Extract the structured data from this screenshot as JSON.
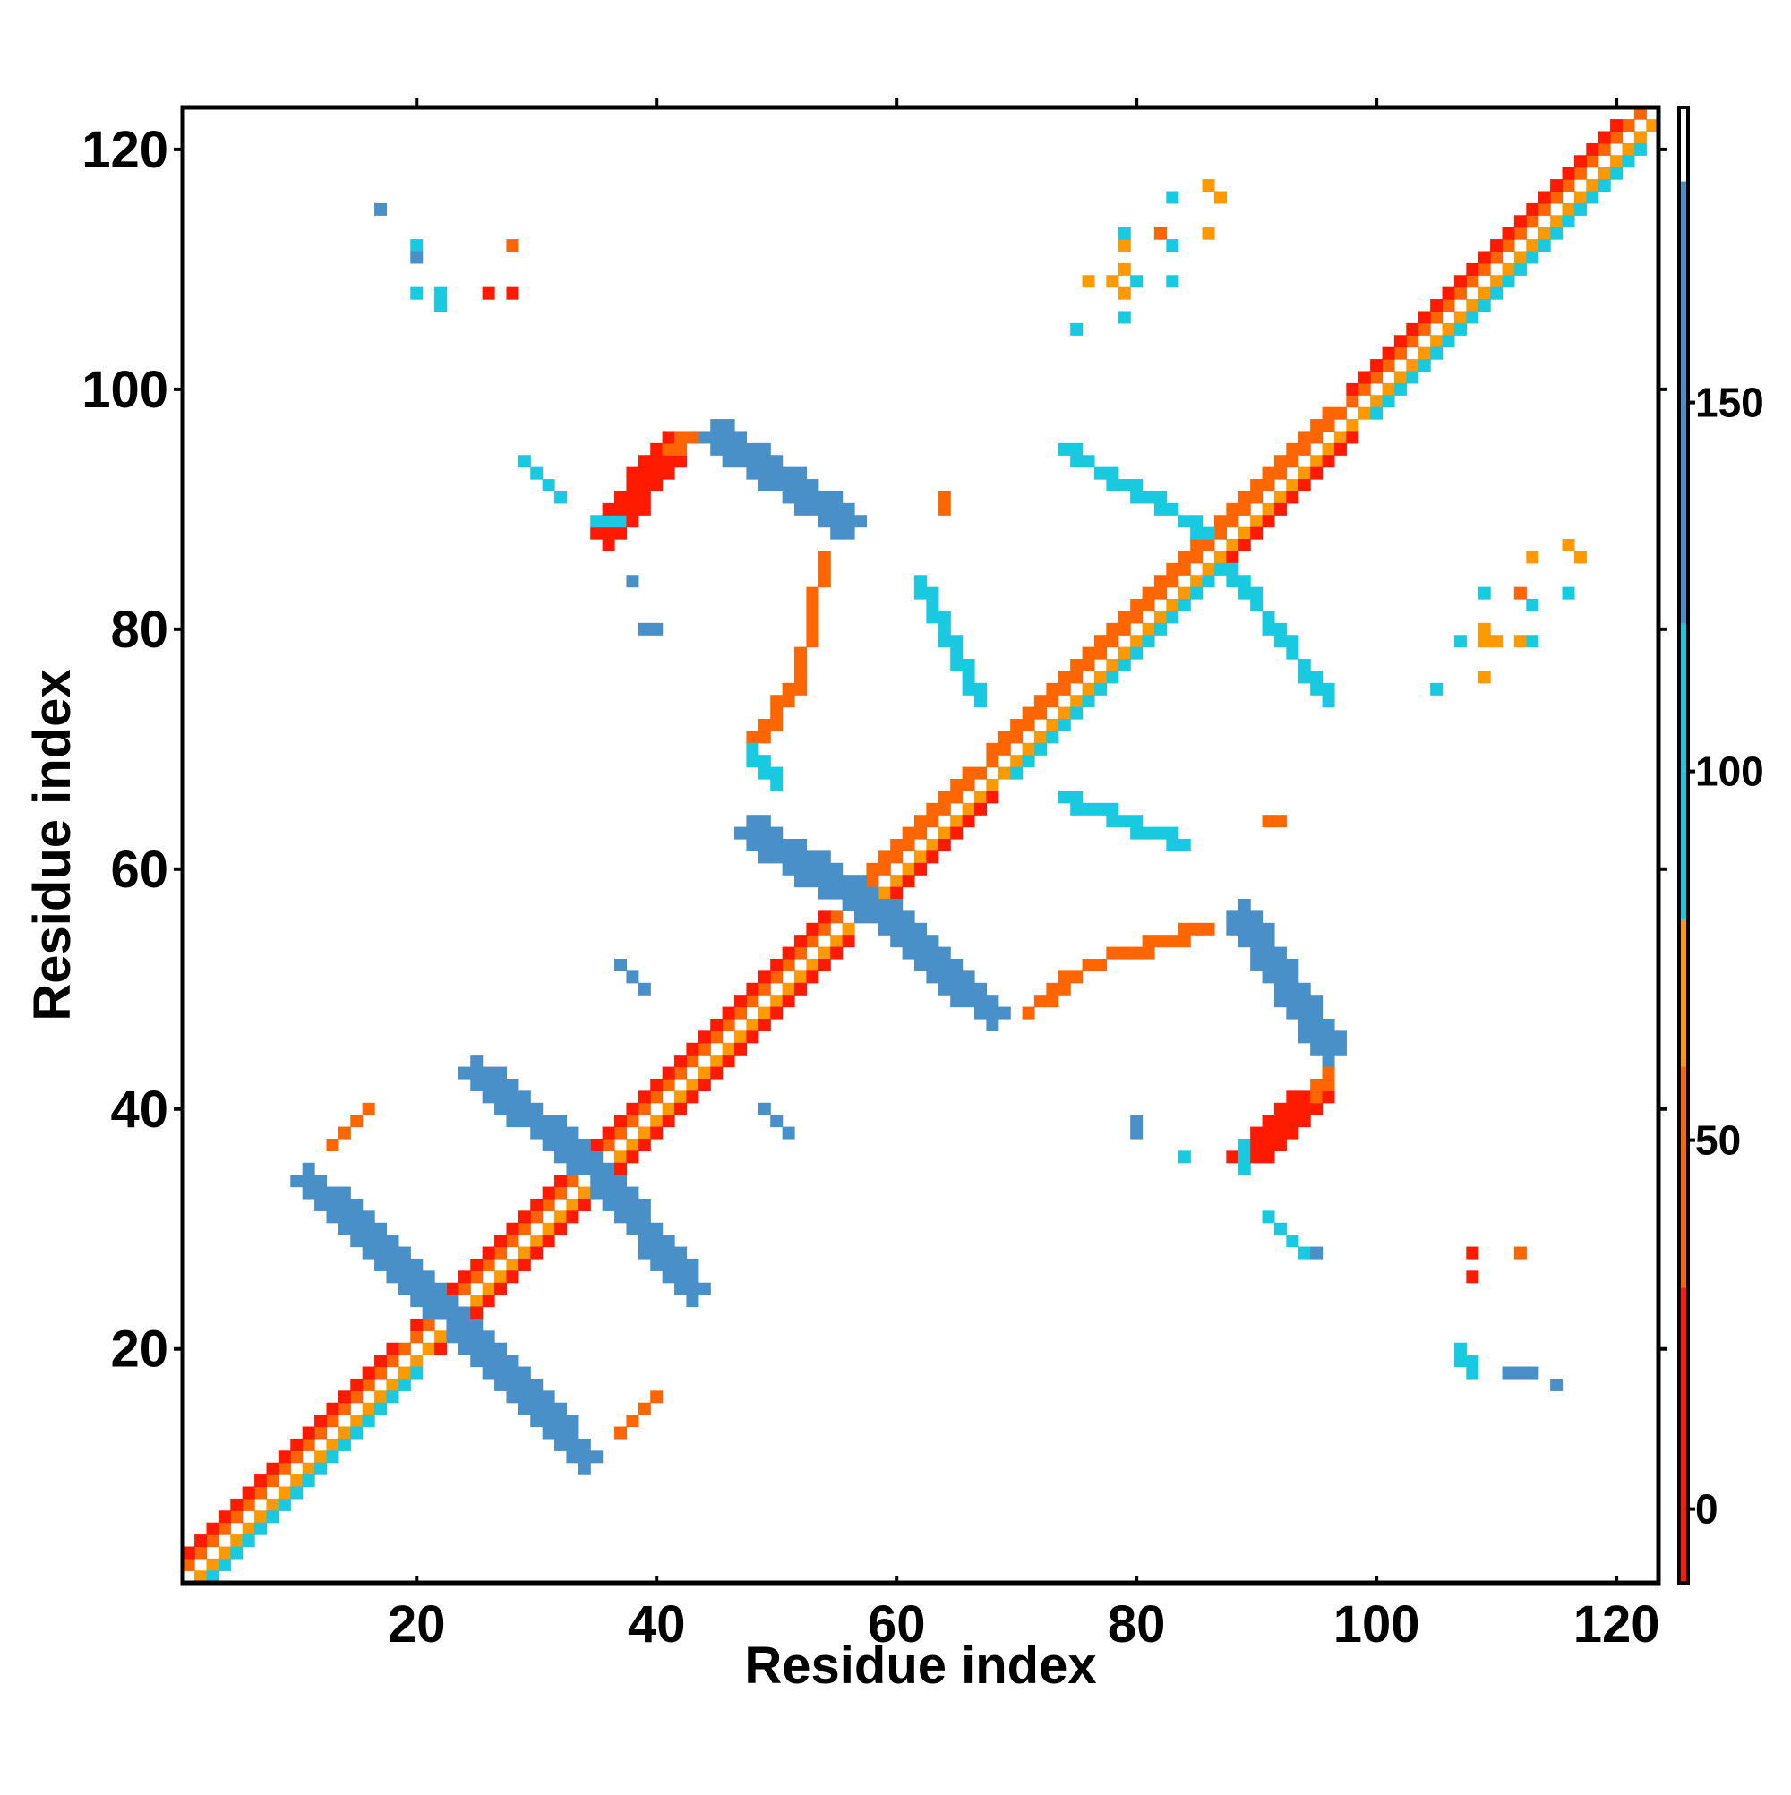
{
  "chart_data": {
    "type": "heatmap",
    "title": "",
    "xlabel": "Residue index",
    "ylabel": "Residue index",
    "xlim": [
      1,
      123
    ],
    "ylim": [
      1,
      123
    ],
    "x_ticks": [
      20,
      40,
      60,
      80,
      100,
      120
    ],
    "y_ticks": [
      20,
      40,
      60,
      80,
      100,
      120
    ],
    "grid": false,
    "colorbar": {
      "range": [
        -10,
        190
      ],
      "ticks": [
        0,
        50,
        100,
        150
      ],
      "bands": [
        {
          "from": -10,
          "to": 30,
          "color": "#ff1a00"
        },
        {
          "from": 30,
          "to": 60,
          "color": "#ff6600"
        },
        {
          "from": 60,
          "to": 80,
          "color": "#ff9900"
        },
        {
          "from": 80,
          "to": 120,
          "color": "#18c9e0"
        },
        {
          "from": 120,
          "to": 180,
          "color": "#4a90c8"
        },
        {
          "from": 180,
          "to": 190,
          "color": "#ffffff"
        }
      ]
    },
    "colors": {
      "red": "#ff1a00",
      "orange": "#ff6600",
      "amber": "#ff9900",
      "cyan": "#18c9e0",
      "steel": "#4a90c8"
    },
    "segments": [
      {
        "from": [
          2,
          1
        ],
        "to": [
          123,
          122
        ],
        "width": 1.0,
        "color": "amber",
        "value": 70
      },
      {
        "from": [
          1,
          2
        ],
        "to": [
          122,
          123
        ],
        "width": 1.0,
        "color": "orange",
        "value": 45
      },
      {
        "from": [
          3,
          1
        ],
        "to": [
          20,
          18
        ],
        "width": 1.0,
        "color": "cyan",
        "value": 100
      },
      {
        "from": [
          1,
          3
        ],
        "to": [
          18,
          20
        ],
        "width": 1.0,
        "color": "red",
        "value": 10
      },
      {
        "from": [
          22,
          20
        ],
        "to": [
          56,
          54
        ],
        "width": 1.4,
        "color": "red",
        "value": 5
      },
      {
        "from": [
          20,
          22
        ],
        "to": [
          54,
          56
        ],
        "width": 1.4,
        "color": "red",
        "value": 5
      },
      {
        "from": [
          60,
          58
        ],
        "to": [
          68,
          66
        ],
        "width": 1.2,
        "color": "red",
        "value": 10
      },
      {
        "from": [
          58,
          60
        ],
        "to": [
          66,
          68
        ],
        "width": 1.2,
        "color": "orange",
        "value": 40
      },
      {
        "from": [
          70,
          68
        ],
        "to": [
          90,
          88
        ],
        "width": 1.4,
        "color": "cyan",
        "value": 100
      },
      {
        "from": [
          68,
          70
        ],
        "to": [
          88,
          90
        ],
        "width": 1.4,
        "color": "orange",
        "value": 45
      },
      {
        "from": [
          88,
          86
        ],
        "to": [
          98,
          96
        ],
        "width": 1.2,
        "color": "red",
        "value": 10
      },
      {
        "from": [
          86,
          88
        ],
        "to": [
          96,
          98
        ],
        "width": 1.2,
        "color": "orange",
        "value": 45
      },
      {
        "from": [
          100,
          98
        ],
        "to": [
          122,
          120
        ],
        "width": 1.4,
        "color": "cyan",
        "value": 100
      },
      {
        "from": [
          98,
          100
        ],
        "to": [
          120,
          122
        ],
        "width": 1.4,
        "color": "red",
        "value": 10
      },
      {
        "from": [
          11,
          34
        ],
        "to": [
          24,
          22
        ],
        "width": 2.0,
        "color": "steel",
        "value": 150
      },
      {
        "from": [
          22,
          24
        ],
        "to": [
          34,
          11
        ],
        "width": 2.0,
        "color": "steel",
        "value": 150
      },
      {
        "from": [
          25,
          43
        ],
        "to": [
          35,
          35
        ],
        "width": 2.0,
        "color": "steel",
        "value": 150
      },
      {
        "from": [
          35,
          35
        ],
        "to": [
          43,
          25
        ],
        "width": 2.0,
        "color": "steel",
        "value": 150
      },
      {
        "from": [
          48,
          63
        ],
        "to": [
          58,
          57
        ],
        "width": 2.2,
        "color": "steel",
        "value": 150
      },
      {
        "from": [
          57,
          58
        ],
        "to": [
          68,
          48
        ],
        "width": 2.2,
        "color": "steel",
        "value": 150
      },
      {
        "from": [
          89,
          56
        ],
        "to": [
          96,
          45
        ],
        "width": 2.0,
        "color": "steel",
        "value": 150
      },
      {
        "from": [
          45,
          96
        ],
        "to": [
          56,
          89
        ],
        "width": 2.0,
        "color": "steel",
        "value": 150
      },
      {
        "from": [
          74,
          95
        ],
        "to": [
          86,
          88
        ],
        "width": 1.6,
        "color": "cyan",
        "value": 110
      },
      {
        "from": [
          88,
          85
        ],
        "to": [
          96,
          74
        ],
        "width": 1.6,
        "color": "cyan",
        "value": 110
      },
      {
        "from": [
          62,
          84
        ],
        "to": [
          67,
          74
        ],
        "width": 1.4,
        "color": "cyan",
        "value": 110
      },
      {
        "from": [
          74,
          66
        ],
        "to": [
          84,
          62
        ],
        "width": 1.4,
        "color": "cyan",
        "value": 110
      },
      {
        "from": [
          54,
          86
        ],
        "to": [
          52,
          76
        ],
        "width": 1.8,
        "color": "orange",
        "value": 45
      },
      {
        "from": [
          52,
          76
        ],
        "to": [
          48,
          70
        ],
        "width": 1.8,
        "color": "orange",
        "value": 45
      },
      {
        "from": [
          48,
          70
        ],
        "to": [
          50,
          67
        ],
        "width": 1.6,
        "color": "cyan",
        "value": 100
      },
      {
        "from": [
          71,
          48
        ],
        "to": [
          76,
          52
        ],
        "width": 1.6,
        "color": "orange",
        "value": 45
      },
      {
        "from": [
          76,
          52
        ],
        "to": [
          86,
          55
        ],
        "width": 1.8,
        "color": "orange",
        "value": 45
      },
      {
        "from": [
          36,
          88
        ],
        "to": [
          41,
          95
        ],
        "width": 2.6,
        "color": "red",
        "value": 5
      },
      {
        "from": [
          41,
          95
        ],
        "to": [
          43,
          96
        ],
        "width": 1.6,
        "color": "orange",
        "value": 45
      },
      {
        "from": [
          35,
          89
        ],
        "to": [
          37,
          89
        ],
        "width": 1.0,
        "color": "cyan",
        "value": 100
      },
      {
        "from": [
          89,
          36
        ],
        "to": [
          95,
          41
        ],
        "width": 2.6,
        "color": "red",
        "value": 5
      },
      {
        "from": [
          95,
          41
        ],
        "to": [
          96,
          43
        ],
        "width": 1.6,
        "color": "orange",
        "value": 45
      },
      {
        "from": [
          89,
          35
        ],
        "to": [
          89,
          37
        ],
        "width": 1.0,
        "color": "cyan",
        "value": 100
      },
      {
        "from": [
          13,
          37
        ],
        "to": [
          16,
          40
        ],
        "width": 1.0,
        "color": "orange",
        "value": 45
      },
      {
        "from": [
          37,
          13
        ],
        "to": [
          40,
          16
        ],
        "width": 1.0,
        "color": "orange",
        "value": 45
      },
      {
        "from": [
          29,
          94
        ],
        "to": [
          32,
          91
        ],
        "width": 1.0,
        "color": "cyan",
        "value": 110
      },
      {
        "from": [
          37,
          52
        ],
        "to": [
          39,
          50
        ],
        "width": 1.0,
        "color": "steel",
        "value": 150
      },
      {
        "from": [
          49,
          40
        ],
        "to": [
          51,
          38
        ],
        "width": 1.0,
        "color": "steel",
        "value": 150
      },
      {
        "from": [
          91,
          31
        ],
        "to": [
          94,
          28
        ],
        "width": 1.0,
        "color": "cyan",
        "value": 110
      },
      {
        "from": [
          107,
          20
        ],
        "to": [
          108,
          18
        ],
        "width": 1.0,
        "color": "cyan",
        "value": 110
      },
      {
        "from": [
          111,
          18
        ],
        "to": [
          113,
          18
        ],
        "width": 1.0,
        "color": "steel",
        "value": 150
      }
    ],
    "points": [
      {
        "x": 17,
        "y": 115,
        "color": "steel",
        "value": 150
      },
      {
        "x": 20,
        "y": 112,
        "color": "cyan",
        "value": 110
      },
      {
        "x": 20,
        "y": 111,
        "color": "steel",
        "value": 150
      },
      {
        "x": 20,
        "y": 108,
        "color": "cyan",
        "value": 110
      },
      {
        "x": 22,
        "y": 108,
        "color": "cyan",
        "value": 110
      },
      {
        "x": 22,
        "y": 107,
        "color": "cyan",
        "value": 110
      },
      {
        "x": 26,
        "y": 108,
        "color": "red",
        "value": 5
      },
      {
        "x": 28,
        "y": 108,
        "color": "red",
        "value": 5
      },
      {
        "x": 28,
        "y": 112,
        "color": "orange",
        "value": 45
      },
      {
        "x": 38,
        "y": 84,
        "color": "steel",
        "value": 150
      },
      {
        "x": 39,
        "y": 80,
        "color": "steel",
        "value": 150
      },
      {
        "x": 40,
        "y": 80,
        "color": "steel",
        "value": 150
      },
      {
        "x": 64,
        "y": 91,
        "color": "orange",
        "value": 45
      },
      {
        "x": 64,
        "y": 90,
        "color": "orange",
        "value": 45
      },
      {
        "x": 75,
        "y": 105,
        "color": "cyan",
        "value": 110
      },
      {
        "x": 76,
        "y": 109,
        "color": "amber",
        "value": 70
      },
      {
        "x": 78,
        "y": 109,
        "color": "amber",
        "value": 70
      },
      {
        "x": 79,
        "y": 110,
        "color": "amber",
        "value": 70
      },
      {
        "x": 79,
        "y": 108,
        "color": "amber",
        "value": 70
      },
      {
        "x": 79,
        "y": 106,
        "color": "cyan",
        "value": 110
      },
      {
        "x": 79,
        "y": 112,
        "color": "amber",
        "value": 70
      },
      {
        "x": 79,
        "y": 113,
        "color": "cyan",
        "value": 110
      },
      {
        "x": 80,
        "y": 109,
        "color": "cyan",
        "value": 110
      },
      {
        "x": 82,
        "y": 113,
        "color": "orange",
        "value": 45
      },
      {
        "x": 83,
        "y": 112,
        "color": "cyan",
        "value": 110
      },
      {
        "x": 83,
        "y": 109,
        "color": "cyan",
        "value": 110
      },
      {
        "x": 83,
        "y": 116,
        "color": "cyan",
        "value": 110
      },
      {
        "x": 86,
        "y": 117,
        "color": "amber",
        "value": 70
      },
      {
        "x": 87,
        "y": 116,
        "color": "amber",
        "value": 70
      },
      {
        "x": 86,
        "y": 113,
        "color": "amber",
        "value": 70
      },
      {
        "x": 91,
        "y": 64,
        "color": "orange",
        "value": 45
      },
      {
        "x": 92,
        "y": 64,
        "color": "orange",
        "value": 45
      },
      {
        "x": 80,
        "y": 39,
        "color": "steel",
        "value": 150
      },
      {
        "x": 80,
        "y": 38,
        "color": "steel",
        "value": 150
      },
      {
        "x": 84,
        "y": 36,
        "color": "cyan",
        "value": 110
      },
      {
        "x": 95,
        "y": 28,
        "color": "steel",
        "value": 150
      },
      {
        "x": 105,
        "y": 75,
        "color": "cyan",
        "value": 110
      },
      {
        "x": 107,
        "y": 79,
        "color": "cyan",
        "value": 110
      },
      {
        "x": 109,
        "y": 79,
        "color": "amber",
        "value": 70
      },
      {
        "x": 110,
        "y": 79,
        "color": "amber",
        "value": 70
      },
      {
        "x": 109,
        "y": 80,
        "color": "amber",
        "value": 70
      },
      {
        "x": 109,
        "y": 76,
        "color": "amber",
        "value": 70
      },
      {
        "x": 109,
        "y": 83,
        "color": "cyan",
        "value": 110
      },
      {
        "x": 112,
        "y": 83,
        "color": "orange",
        "value": 45
      },
      {
        "x": 113,
        "y": 82,
        "color": "cyan",
        "value": 110
      },
      {
        "x": 112,
        "y": 79,
        "color": "amber",
        "value": 70
      },
      {
        "x": 113,
        "y": 79,
        "color": "cyan",
        "value": 110
      },
      {
        "x": 113,
        "y": 86,
        "color": "amber",
        "value": 70
      },
      {
        "x": 116,
        "y": 87,
        "color": "amber",
        "value": 70
      },
      {
        "x": 117,
        "y": 86,
        "color": "amber",
        "value": 70
      },
      {
        "x": 116,
        "y": 83,
        "color": "cyan",
        "value": 110
      },
      {
        "x": 108,
        "y": 28,
        "color": "red",
        "value": 5
      },
      {
        "x": 108,
        "y": 26,
        "color": "red",
        "value": 5
      },
      {
        "x": 112,
        "y": 28,
        "color": "orange",
        "value": 45
      },
      {
        "x": 115,
        "y": 17,
        "color": "steel",
        "value": 150
      }
    ]
  }
}
